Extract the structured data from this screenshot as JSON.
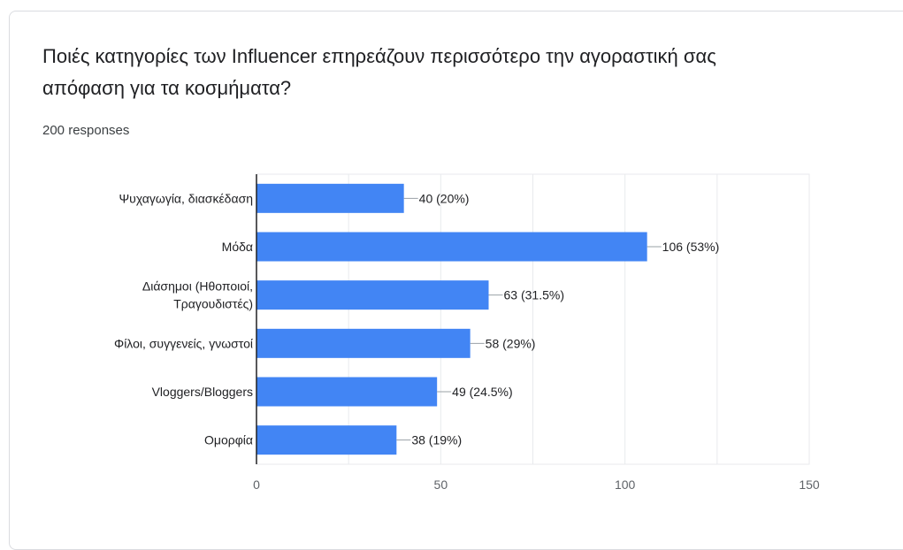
{
  "question": {
    "title": "Ποιές κατηγορίες των Influencer επηρεάζουν περισσότερο την αγοραστική σας απόφαση για τα κοσμήματα?",
    "responses": "200 responses"
  },
  "colors": {
    "bar": "#4285f4",
    "grid": "#e8eaed",
    "axis": "#202124",
    "label": "#202124"
  },
  "chart_data": {
    "type": "bar",
    "orientation": "horizontal",
    "categories": [
      [
        "Ψυχαγωγία, διασκέδαση"
      ],
      [
        "Μόδα"
      ],
      [
        "Διάσημοι (Ηθοποιοί,",
        "Τραγουδιστές)"
      ],
      [
        "Φίλοι, συγγενείς, γνωστοί"
      ],
      [
        "Vloggers/Bloggers"
      ],
      [
        "Ομορφία"
      ]
    ],
    "values": [
      40,
      106,
      63,
      58,
      49,
      38
    ],
    "data_labels": [
      "40 (20%)",
      "106 (53%)",
      "63 (31.5%)",
      "58 (29%)",
      "49 (24.5%)",
      "38 (19%)"
    ],
    "xlim": [
      0,
      150
    ],
    "xticks": [
      0,
      50,
      100,
      150
    ],
    "grid": true
  }
}
